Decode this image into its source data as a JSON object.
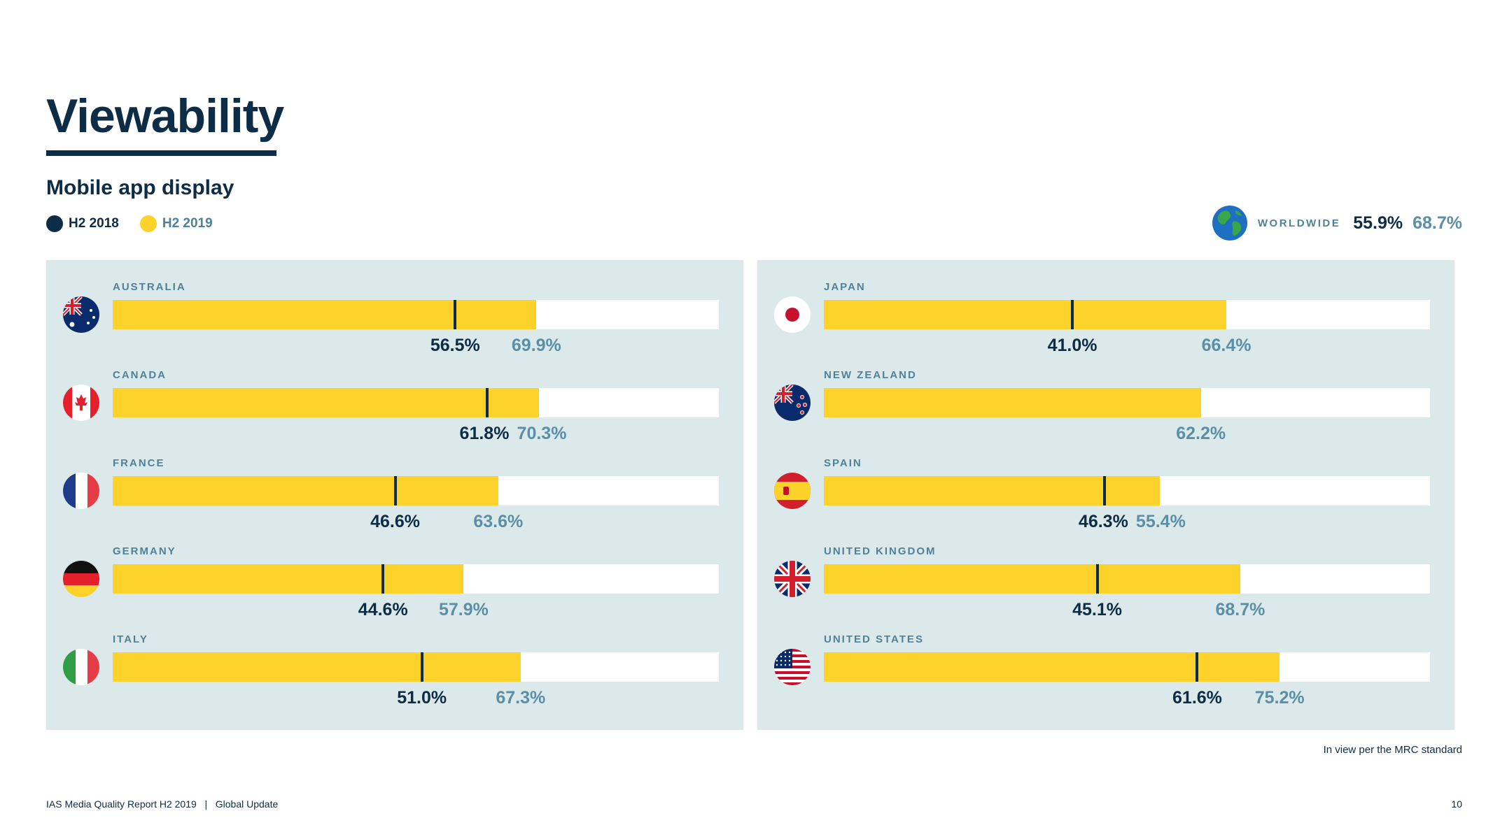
{
  "header": {
    "title": "Viewability",
    "subtitle": "Mobile app display"
  },
  "legend": {
    "h2_2018": {
      "label": "H2 2018",
      "color": "#0d2c45"
    },
    "h2_2019": {
      "label": "H2 2019",
      "color": "#fdd22b"
    }
  },
  "worldwide": {
    "label": "WORLDWIDE",
    "h2_2018": "55.9%",
    "h2_2019": "68.7%",
    "icon": "globe-icon"
  },
  "chart_data": {
    "type": "bar",
    "series": [
      {
        "name": "H2 2018",
        "role": "marker",
        "color": "#0d2c45"
      },
      {
        "name": "H2 2019",
        "role": "bar",
        "color": "#fdd22b"
      }
    ],
    "xlim": [
      0,
      100
    ],
    "panels": [
      {
        "countries": [
          {
            "name": "AUSTRALIA",
            "flag": "australia-flag-icon",
            "h2_2018": 56.5,
            "h2_2018_label": "56.5%",
            "h2_2019": 69.9,
            "h2_2019_label": "69.9%"
          },
          {
            "name": "CANADA",
            "flag": "canada-flag-icon",
            "h2_2018": 61.8,
            "h2_2018_label": "61.8%",
            "h2_2019": 70.3,
            "h2_2019_label": "70.3%"
          },
          {
            "name": "FRANCE",
            "flag": "france-flag-icon",
            "h2_2018": 46.6,
            "h2_2018_label": "46.6%",
            "h2_2019": 63.6,
            "h2_2019_label": "63.6%"
          },
          {
            "name": "GERMANY",
            "flag": "germany-flag-icon",
            "h2_2018": 44.6,
            "h2_2018_label": "44.6%",
            "h2_2019": 57.9,
            "h2_2019_label": "57.9%"
          },
          {
            "name": "ITALY",
            "flag": "italy-flag-icon",
            "h2_2018": 51.0,
            "h2_2018_label": "51.0%",
            "h2_2019": 67.3,
            "h2_2019_label": "67.3%"
          }
        ]
      },
      {
        "countries": [
          {
            "name": "JAPAN",
            "flag": "japan-flag-icon",
            "h2_2018": 41.0,
            "h2_2018_label": "41.0%",
            "h2_2019": 66.4,
            "h2_2019_label": "66.4%"
          },
          {
            "name": "NEW ZEALAND",
            "flag": "new-zealand-flag-icon",
            "h2_2018": null,
            "h2_2018_label": "",
            "h2_2019": 62.2,
            "h2_2019_label": "62.2%"
          },
          {
            "name": "SPAIN",
            "flag": "spain-flag-icon",
            "h2_2018": 46.3,
            "h2_2018_label": "46.3%",
            "h2_2019": 55.4,
            "h2_2019_label": "55.4%"
          },
          {
            "name": "UNITED KINGDOM",
            "flag": "united-kingdom-flag-icon",
            "h2_2018": 45.1,
            "h2_2018_label": "45.1%",
            "h2_2019": 68.7,
            "h2_2019_label": "68.7%"
          },
          {
            "name": "UNITED STATES",
            "flag": "united-states-flag-icon",
            "h2_2018": 61.6,
            "h2_2018_label": "61.6%",
            "h2_2019": 75.2,
            "h2_2019_label": "75.2%"
          }
        ]
      }
    ]
  },
  "footnote": "In view per the MRC standard",
  "footer": {
    "report": "IAS Media Quality Report H2 2019",
    "separator": "|",
    "section": "Global Update",
    "page": "10"
  }
}
